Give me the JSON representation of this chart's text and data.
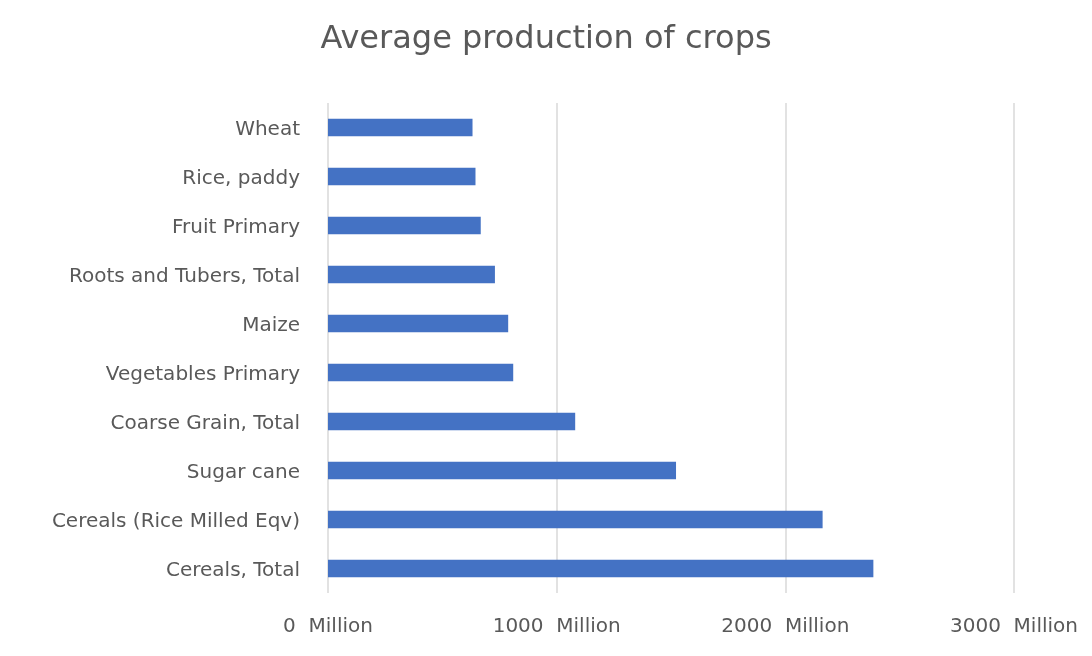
{
  "chart_data": {
    "type": "bar",
    "orientation": "horizontal",
    "title": "Average production of crops",
    "categories": [
      "Wheat",
      "Rice, paddy",
      "Fruit Primary",
      "Roots and Tubers, Total",
      "Maize",
      "Vegetables Primary",
      "Coarse Grain, Total",
      "Sugar cane",
      "Cereals (Rice Milled Eqv)",
      "Cereals, Total"
    ],
    "values": [
      632,
      645,
      668,
      730,
      788,
      810,
      1081,
      1522,
      2163,
      2385
    ],
    "color": "#4472c4",
    "xlim": [
      0,
      3000
    ],
    "xticks": [
      {
        "value": 0,
        "label": "0  Million"
      },
      {
        "value": 1000,
        "label": "1000  Million"
      },
      {
        "value": 2000,
        "label": "2000  Million"
      },
      {
        "value": 3000,
        "label": "3000  Million"
      }
    ],
    "grid": "x"
  }
}
